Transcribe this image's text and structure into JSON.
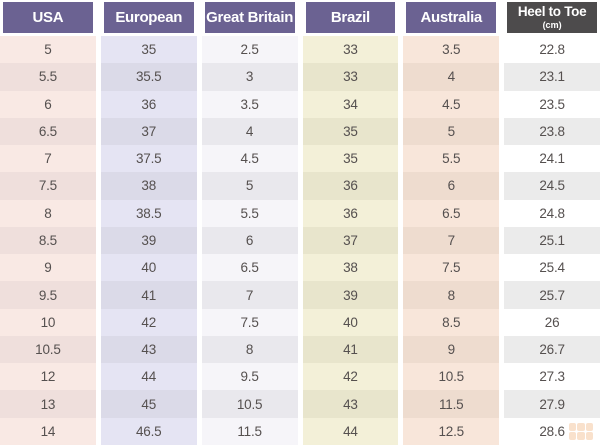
{
  "chart_data": {
    "type": "table",
    "header_text_color": "#ffffff",
    "text_color": "#55504f",
    "columns": [
      {
        "label": "USA",
        "header_bg": "#6b6292",
        "row_bg": "#f9e9e4",
        "row_bg_alt": "#efdfdc"
      },
      {
        "label": "European",
        "header_bg": "#6b6292",
        "row_bg": "#e5e4f3",
        "row_bg_alt": "#dbdae8"
      },
      {
        "label": "Great Britain",
        "header_bg": "#6b6292",
        "row_bg": "#f6f5f9",
        "row_bg_alt": "#e9e8ed"
      },
      {
        "label": "Brazil",
        "header_bg": "#6b6292",
        "row_bg": "#f3f0d8",
        "row_bg_alt": "#e8e5cc"
      },
      {
        "label": "Australia",
        "header_bg": "#6b6292",
        "row_bg": "#f8e6da",
        "row_bg_alt": "#eedccf"
      },
      {
        "label": "Heel to Toe",
        "sublabel": "(cm)",
        "header_bg": "#4d4b4c",
        "row_bg": "#ffffff",
        "row_bg_alt": "#ebebeb"
      }
    ],
    "rows": [
      [
        "5",
        "35",
        "2.5",
        "33",
        "3.5",
        "22.8"
      ],
      [
        "5.5",
        "35.5",
        "3",
        "33",
        "4",
        "23.1"
      ],
      [
        "6",
        "36",
        "3.5",
        "34",
        "4.5",
        "23.5"
      ],
      [
        "6.5",
        "37",
        "4",
        "35",
        "5",
        "23.8"
      ],
      [
        "7",
        "37.5",
        "4.5",
        "35",
        "5.5",
        "24.1"
      ],
      [
        "7.5",
        "38",
        "5",
        "36",
        "6",
        "24.5"
      ],
      [
        "8",
        "38.5",
        "5.5",
        "36",
        "6.5",
        "24.8"
      ],
      [
        "8.5",
        "39",
        "6",
        "37",
        "7",
        "25.1"
      ],
      [
        "9",
        "40",
        "6.5",
        "38",
        "7.5",
        "25.4"
      ],
      [
        "9.5",
        "41",
        "7",
        "39",
        "8",
        "25.7"
      ],
      [
        "10",
        "42",
        "7.5",
        "40",
        "8.5",
        "26"
      ],
      [
        "10.5",
        "43",
        "8",
        "41",
        "9",
        "26.7"
      ],
      [
        "12",
        "44",
        "9.5",
        "42",
        "10.5",
        "27.3"
      ],
      [
        "13",
        "45",
        "10.5",
        "43",
        "11.5",
        "27.9"
      ],
      [
        "14",
        "46.5",
        "11.5",
        "44",
        "12.5",
        "28.6"
      ]
    ]
  },
  "watermark": {
    "icon": "grid-logo-icon",
    "color": "#efa668"
  }
}
